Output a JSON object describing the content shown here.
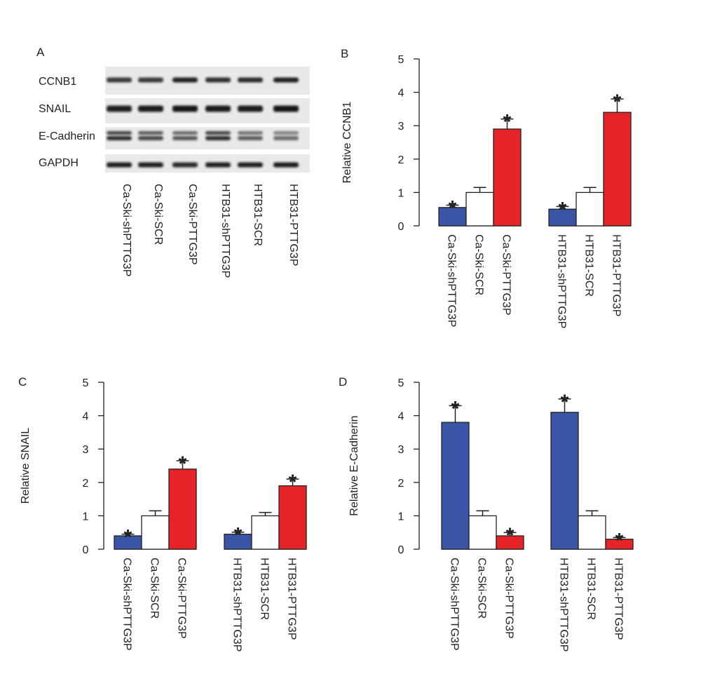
{
  "figure": {
    "panel_a": {
      "letter": "A",
      "proteins": [
        "CCNB1",
        "SNAIL",
        "E-Cadherin",
        "GAPDH"
      ],
      "lanes": [
        "Ca-Ski-shPTTG3P",
        "Ca-Ski-SCR",
        "Ca-Ski-PTTG3P",
        "HTB31-shPTTG3P",
        "HTB31-SCR",
        "HTB31-PTTG3P"
      ]
    }
  },
  "colors": {
    "blue": "#3a55a6",
    "white": "#ffffff",
    "red": "#e62428",
    "axis": "#222222"
  },
  "chart_data": [
    {
      "panel": "B",
      "type": "bar",
      "title": "",
      "xlabel": "",
      "ylabel": "Relative CCNB1",
      "ylim": [
        0,
        5
      ],
      "yticks": [
        0,
        1,
        2,
        3,
        4,
        5
      ],
      "groups": [
        {
          "categories": [
            "Ca-Ski-shPTTG3P",
            "Ca-Ski-SCR",
            "Ca-Ski-PTTG3P"
          ],
          "values": [
            0.55,
            1.0,
            2.9
          ],
          "errors": [
            0.07,
            0.15,
            0.3
          ],
          "significant": [
            "*",
            "",
            "*"
          ]
        },
        {
          "categories": [
            "HTB31-shPTTG3P",
            "HTB31-SCR",
            "HTB31-PTTG3P"
          ],
          "values": [
            0.5,
            1.0,
            3.4
          ],
          "errors": [
            0.08,
            0.15,
            0.4
          ],
          "significant": [
            "*",
            "",
            "*"
          ]
        }
      ]
    },
    {
      "panel": "C",
      "type": "bar",
      "title": "",
      "xlabel": "",
      "ylabel": "Relative SNAIL",
      "ylim": [
        0,
        5
      ],
      "yticks": [
        0,
        1,
        2,
        3,
        4,
        5
      ],
      "groups": [
        {
          "categories": [
            "Ca-Ski-shPTTG3P",
            "Ca-Ski-SCR",
            "Ca-Ski-PTTG3P"
          ],
          "values": [
            0.4,
            1.0,
            2.4
          ],
          "errors": [
            0.05,
            0.15,
            0.25
          ],
          "significant": [
            "*",
            "",
            "*"
          ]
        },
        {
          "categories": [
            "HTB31-shPTTG3P",
            "HTB31-SCR",
            "HTB31-PTTG3P"
          ],
          "values": [
            0.45,
            1.0,
            1.9
          ],
          "errors": [
            0.06,
            0.1,
            0.2
          ],
          "significant": [
            "*",
            "",
            "*"
          ]
        }
      ]
    },
    {
      "panel": "D",
      "type": "bar",
      "title": "",
      "xlabel": "",
      "ylabel": "Relative E-Cadherin",
      "ylim": [
        0,
        5
      ],
      "yticks": [
        0,
        1,
        2,
        3,
        4,
        5
      ],
      "groups": [
        {
          "categories": [
            "Ca-Ski-shPTTG3P",
            "Ca-Ski-SCR",
            "Ca-Ski-PTTG3P"
          ],
          "values": [
            3.8,
            1.0,
            0.4
          ],
          "errors": [
            0.5,
            0.15,
            0.1
          ],
          "significant": [
            "*",
            "",
            "*"
          ]
        },
        {
          "categories": [
            "HTB31-shPTTG3P",
            "HTB31-SCR",
            "HTB31-PTTG3P"
          ],
          "values": [
            4.1,
            1.0,
            0.3
          ],
          "errors": [
            0.4,
            0.15,
            0.05
          ],
          "significant": [
            "*",
            "",
            "*"
          ]
        }
      ]
    }
  ]
}
